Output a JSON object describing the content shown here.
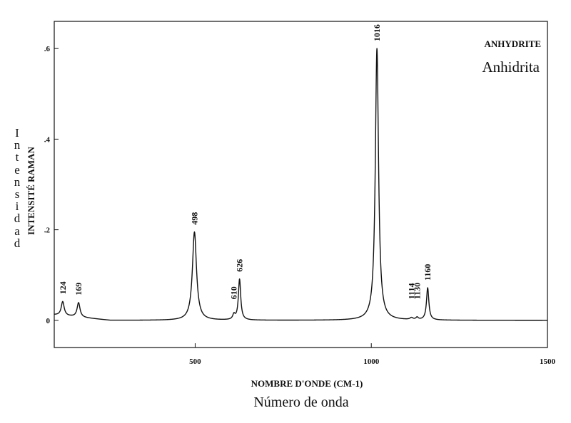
{
  "chart_data": {
    "type": "line",
    "title": "ANHYDRITE",
    "subtitle": "Anhidrita",
    "xlabel": "NOMBRE D'ONDE (CM-1)",
    "xlabel_es": "Número de onda",
    "ylabel": "INTENSITÉ RAMAN",
    "ylabel_es": "Intensidad",
    "xlim": [
      100,
      1500
    ],
    "ylim": [
      -0.06,
      0.66
    ],
    "x_ticks": [
      {
        "value": 500,
        "label": "500"
      },
      {
        "value": 1000,
        "label": "1000"
      },
      {
        "value": 1500,
        "label": "1500"
      }
    ],
    "y_ticks": [
      {
        "value": 0,
        "label": "0"
      },
      {
        "value": 0.2,
        "label": ".2"
      },
      {
        "value": 0.4,
        "label": ".4"
      },
      {
        "value": 0.6,
        "label": ".6"
      }
    ],
    "grid": false,
    "baseline": 0.012,
    "peaks": [
      {
        "x": 124,
        "y": 0.031,
        "label": "124"
      },
      {
        "x": 169,
        "y": 0.032,
        "label": "169"
      },
      {
        "x": 498,
        "y": 0.195,
        "label": "498"
      },
      {
        "x": 610,
        "y": 0.011,
        "label": "610"
      },
      {
        "x": 626,
        "y": 0.09,
        "label": "626"
      },
      {
        "x": 1016,
        "y": 0.6,
        "label": "1016"
      },
      {
        "x": 1114,
        "y": 0.004,
        "label": "1114"
      },
      {
        "x": 1130,
        "y": 0.005,
        "label": "1130"
      },
      {
        "x": 1160,
        "y": 0.071,
        "label": "1160"
      }
    ]
  }
}
